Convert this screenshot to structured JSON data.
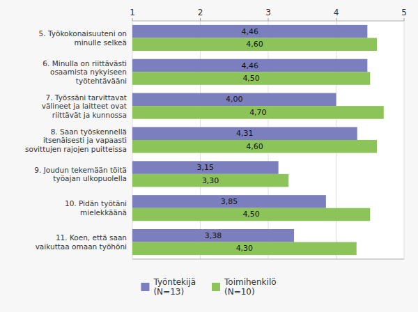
{
  "chart_data": {
    "type": "bar",
    "orientation": "horizontal",
    "categories": [
      "5. Työkokonaisuuteni on\nminulle selkeä",
      "6. Minulla on riittävästi\nosaamista nykyiseen\ntyötehtävääni",
      "7. Työssäni tarvittavat\nvälineet ja laitteet ovat\nriittävät ja kunnossa",
      "8. Saan työskennellä\nitsenäisesti ja vapaasti\nsovittujen rajojen puitteissa",
      "9. Joudun tekemään töitä\ntyöajan ulkopuolella",
      "10. Pidän työtäni\nmielekkäänä",
      "11. Koen, että saan\nvaikuttaa omaan työhöni"
    ],
    "series": [
      {
        "name": "Työntekijä\n(N=13)",
        "color": "#7b7fbe",
        "values": [
          4.46,
          4.46,
          4.0,
          4.31,
          3.15,
          3.85,
          3.38
        ],
        "value_labels": [
          "4,46",
          "4,46",
          "4,00",
          "4,31",
          "3,15",
          "3,85",
          "3,38"
        ]
      },
      {
        "name": "Toimihenkilö\n(N=10)",
        "color": "#8dc45a",
        "values": [
          4.6,
          4.5,
          4.7,
          4.6,
          3.3,
          4.5,
          4.3
        ],
        "value_labels": [
          "4,60",
          "4,50",
          "4,70",
          "4,60",
          "3,30",
          "4,50",
          "4,30"
        ]
      }
    ],
    "xlim": [
      1,
      5
    ],
    "xticks": [
      1,
      2,
      3,
      4,
      5
    ],
    "grid": true,
    "data_labels": true,
    "legend": "bottom"
  }
}
